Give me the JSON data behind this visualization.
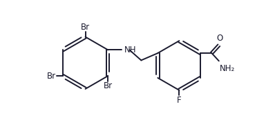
{
  "bg_color": "#ffffff",
  "line_color": "#1a1a2e",
  "line_width": 1.4,
  "font_size": 8.5,
  "figsize": [
    3.98,
    1.9
  ],
  "dpi": 100,
  "xlim": [
    0,
    16
  ],
  "ylim": [
    0,
    10
  ]
}
